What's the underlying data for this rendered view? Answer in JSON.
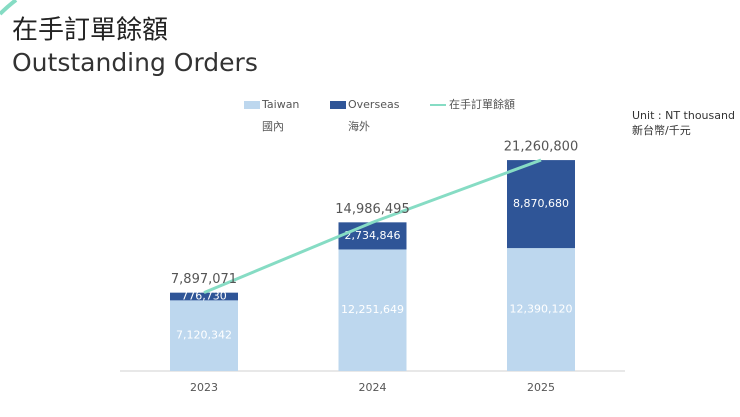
{
  "chart_data": {
    "type": "bar",
    "stacked": true,
    "title": "在手訂單餘額",
    "subtitle": "Outstanding Orders",
    "unit": "Unit : NT thousand",
    "unit_zh": "新台幣/千元",
    "categories": [
      "2023",
      "2024",
      "2025"
    ],
    "series": [
      {
        "name": "Taiwan",
        "name_zh": "國內",
        "color": "#bdd7ee",
        "values": [
          7120342,
          12251649,
          12390120
        ],
        "value_labels": [
          "7,120,342",
          "12,251,649",
          "12,390,120"
        ]
      },
      {
        "name": "Overseas",
        "name_zh": "海外",
        "color": "#2f5597",
        "values": [
          776730,
          2734846,
          8870680
        ],
        "value_labels": [
          "776,730",
          "2,734,846",
          "8,870,680"
        ]
      }
    ],
    "line": {
      "name": "在手訂單餘額",
      "color": "#86dcc4",
      "values": [
        7897071,
        14986495,
        21260800
      ],
      "value_labels": [
        "7,897,071",
        "14,986,495",
        "21,260,800"
      ]
    },
    "ylim": [
      0,
      25000000
    ]
  }
}
